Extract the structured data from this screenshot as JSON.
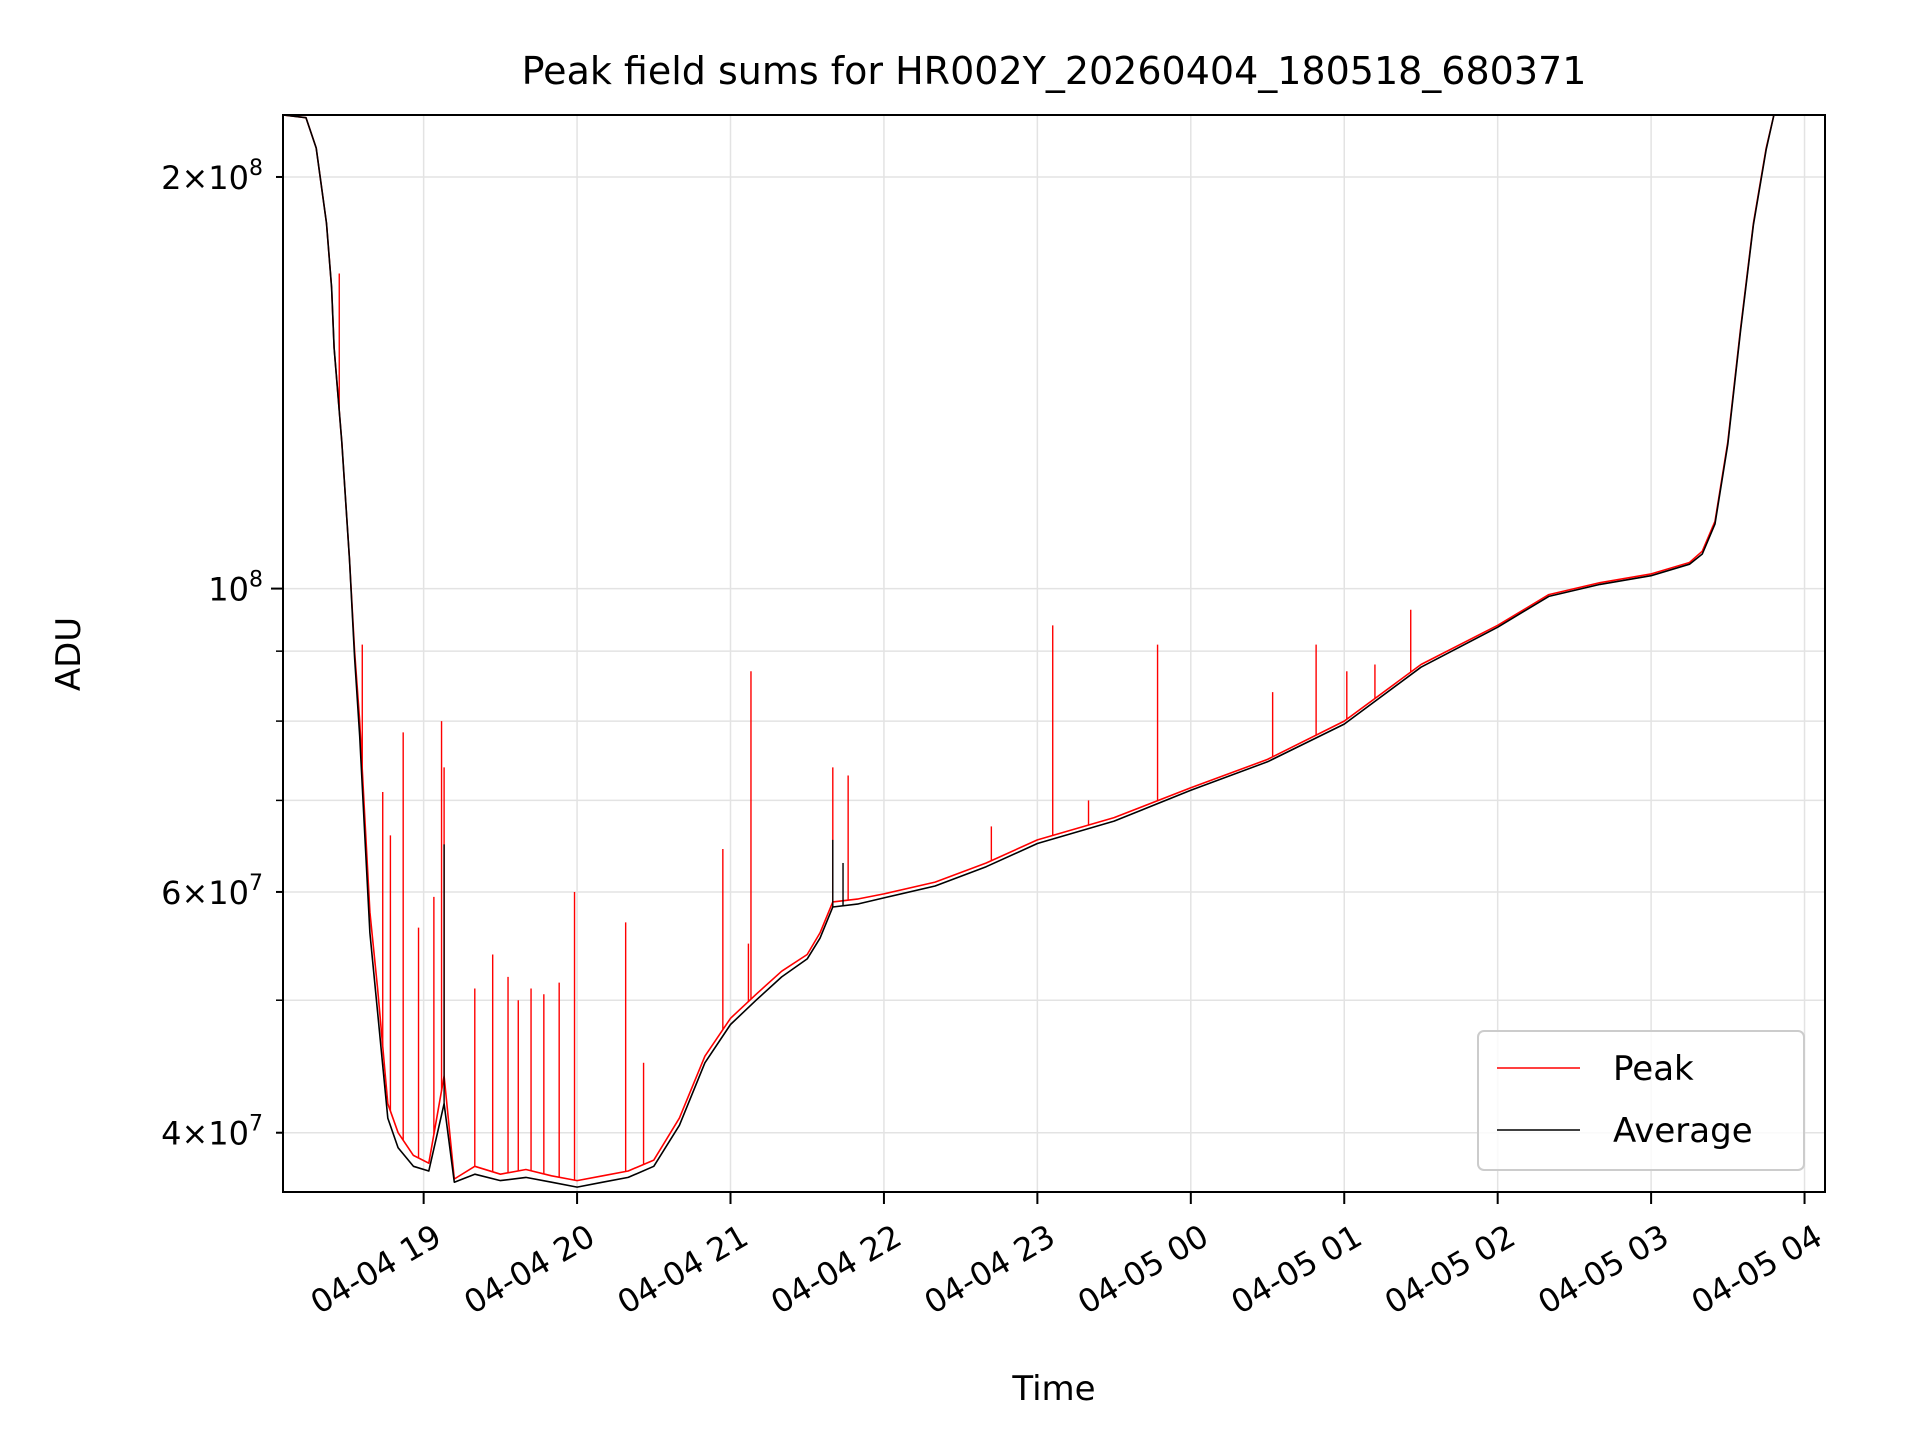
{
  "chart_data": {
    "type": "line",
    "title": "Peak field sums for HR002Y_20260404_180518_680371",
    "xlabel": "Time",
    "ylabel": "ADU",
    "yscale": "log",
    "ylim": [
      36200000,
      222000000
    ],
    "xlim": [
      "2026-04-04 18:05",
      "2026-04-05 04:08"
    ],
    "grid": true,
    "legend_position": "lower right",
    "x_ticks": [
      {
        "t": "2026-04-04 19:00",
        "label": "04-04 19"
      },
      {
        "t": "2026-04-04 20:00",
        "label": "04-04 20"
      },
      {
        "t": "2026-04-04 21:00",
        "label": "04-04 21"
      },
      {
        "t": "2026-04-04 22:00",
        "label": "04-04 22"
      },
      {
        "t": "2026-04-04 23:00",
        "label": "04-04 23"
      },
      {
        "t": "2026-04-05 00:00",
        "label": "04-05 00"
      },
      {
        "t": "2026-04-05 01:00",
        "label": "04-05 01"
      },
      {
        "t": "2026-04-05 02:00",
        "label": "04-05 02"
      },
      {
        "t": "2026-04-05 03:00",
        "label": "04-05 03"
      },
      {
        "t": "2026-04-05 04:00",
        "label": "04-05 04"
      }
    ],
    "y_ticks": [
      {
        "value": 40000000,
        "mantissa": "4",
        "exponent": "7",
        "major": false
      },
      {
        "value": 60000000,
        "mantissa": "6",
        "exponent": "7",
        "major": false
      },
      {
        "value": 100000000,
        "mantissa": "",
        "exponent": "8",
        "major": true
      },
      {
        "value": 200000000,
        "mantissa": "2",
        "exponent": "8",
        "major": false
      }
    ],
    "y_minor_gridlines": [
      50000000,
      70000000,
      80000000,
      90000000
    ],
    "series": [
      {
        "name": "Peak",
        "color": "#ff0000",
        "points": [
          [
            "2026-04-04 18:05",
            222000000
          ],
          [
            "2026-04-04 18:14",
            221000000
          ],
          [
            "2026-04-04 18:18",
            210000000
          ],
          [
            "2026-04-04 18:22",
            185000000
          ],
          [
            "2026-04-04 18:24",
            166000000
          ],
          [
            "2026-04-04 18:25",
            150000000
          ],
          [
            "2026-04-04 18:28",
            128000000
          ],
          [
            "2026-04-04 18:31",
            105000000
          ],
          [
            "2026-04-04 18:33",
            90000000
          ],
          [
            "2026-04-04 18:35",
            80000000
          ],
          [
            "2026-04-04 18:37",
            68000000
          ],
          [
            "2026-04-04 18:39",
            58000000
          ],
          [
            "2026-04-04 18:42",
            51000000
          ],
          [
            "2026-04-04 18:46",
            42000000
          ],
          [
            "2026-04-04 18:50",
            40000000
          ],
          [
            "2026-04-04 18:56",
            38500000
          ],
          [
            "2026-04-04 19:02",
            38000000
          ],
          [
            "2026-04-04 19:08",
            44000000
          ],
          [
            "2026-04-04 19:12",
            37000000
          ],
          [
            "2026-04-04 19:20",
            37800000
          ],
          [
            "2026-04-04 19:30",
            37300000
          ],
          [
            "2026-04-04 19:40",
            37600000
          ],
          [
            "2026-04-04 19:50",
            37200000
          ],
          [
            "2026-04-04 20:00",
            36900000
          ],
          [
            "2026-04-04 20:10",
            37200000
          ],
          [
            "2026-04-04 20:20",
            37500000
          ],
          [
            "2026-04-04 20:30",
            38200000
          ],
          [
            "2026-04-04 20:40",
            41000000
          ],
          [
            "2026-04-04 20:50",
            45500000
          ],
          [
            "2026-04-04 21:00",
            48500000
          ],
          [
            "2026-04-04 21:10",
            50500000
          ],
          [
            "2026-04-04 21:20",
            52500000
          ],
          [
            "2026-04-04 21:30",
            54000000
          ],
          [
            "2026-04-04 21:35",
            56000000
          ],
          [
            "2026-04-04 21:40",
            59000000
          ],
          [
            "2026-04-04 21:50",
            59300000
          ],
          [
            "2026-04-04 22:00",
            59800000
          ],
          [
            "2026-04-04 22:20",
            61000000
          ],
          [
            "2026-04-04 22:40",
            63000000
          ],
          [
            "2026-04-04 23:00",
            65500000
          ],
          [
            "2026-04-04 23:30",
            68000000
          ],
          [
            "2026-04-05 00:00",
            71500000
          ],
          [
            "2026-04-05 00:30",
            75000000
          ],
          [
            "2026-04-05 01:00",
            80000000
          ],
          [
            "2026-04-05 01:30",
            88000000
          ],
          [
            "2026-04-05 02:00",
            94000000
          ],
          [
            "2026-04-05 02:20",
            99000000
          ],
          [
            "2026-04-05 02:40",
            101000000
          ],
          [
            "2026-04-05 03:00",
            102500000
          ],
          [
            "2026-04-05 03:15",
            104500000
          ],
          [
            "2026-04-05 03:20",
            106500000
          ],
          [
            "2026-04-05 03:25",
            112000000
          ],
          [
            "2026-04-05 03:30",
            128000000
          ],
          [
            "2026-04-05 03:35",
            155000000
          ],
          [
            "2026-04-05 03:40",
            185000000
          ],
          [
            "2026-04-05 03:45",
            210000000
          ],
          [
            "2026-04-05 03:48",
            222000000
          ]
        ],
        "spikes": [
          [
            "2026-04-04 18:27",
            170000000
          ],
          [
            "2026-04-04 18:36",
            91000000
          ],
          [
            "2026-04-04 18:44",
            71000000
          ],
          [
            "2026-04-04 18:47",
            66000000
          ],
          [
            "2026-04-04 18:52",
            78500000
          ],
          [
            "2026-04-04 18:58",
            56500000
          ],
          [
            "2026-04-04 19:04",
            59500000
          ],
          [
            "2026-04-04 19:07",
            80000000
          ],
          [
            "2026-04-04 19:08",
            74000000
          ],
          [
            "2026-04-04 19:20",
            51000000
          ],
          [
            "2026-04-04 19:27",
            54000000
          ],
          [
            "2026-04-04 19:33",
            52000000
          ],
          [
            "2026-04-04 19:37",
            50000000
          ],
          [
            "2026-04-04 19:42",
            51000000
          ],
          [
            "2026-04-04 19:47",
            50500000
          ],
          [
            "2026-04-04 19:53",
            51500000
          ],
          [
            "2026-04-04 19:59",
            60000000
          ],
          [
            "2026-04-04 20:19",
            57000000
          ],
          [
            "2026-04-04 20:26",
            45000000
          ],
          [
            "2026-04-04 20:57",
            64500000
          ],
          [
            "2026-04-04 21:07",
            55000000
          ],
          [
            "2026-04-04 21:08",
            87000000
          ],
          [
            "2026-04-04 21:40",
            74000000
          ],
          [
            "2026-04-04 21:46",
            73000000
          ],
          [
            "2026-04-04 22:42",
            67000000
          ],
          [
            "2026-04-04 23:06",
            94000000
          ],
          [
            "2026-04-04 23:20",
            70000000
          ],
          [
            "2026-04-04 23:47",
            91000000
          ],
          [
            "2026-04-05 00:32",
            84000000
          ],
          [
            "2026-04-05 00:49",
            91000000
          ],
          [
            "2026-04-05 01:01",
            87000000
          ],
          [
            "2026-04-05 01:12",
            88000000
          ],
          [
            "2026-04-05 01:26",
            96500000
          ],
          [
            "2026-04-05 03:24",
            111000000
          ]
        ]
      },
      {
        "name": "Average",
        "color": "#000000",
        "points": [
          [
            "2026-04-04 18:05",
            222000000
          ],
          [
            "2026-04-04 18:14",
            221000000
          ],
          [
            "2026-04-04 18:18",
            210000000
          ],
          [
            "2026-04-04 18:22",
            185000000
          ],
          [
            "2026-04-04 18:24",
            166000000
          ],
          [
            "2026-04-04 18:25",
            150000000
          ],
          [
            "2026-04-04 18:28",
            128000000
          ],
          [
            "2026-04-04 18:31",
            105000000
          ],
          [
            "2026-04-04 18:33",
            89000000
          ],
          [
            "2026-04-04 18:35",
            78000000
          ],
          [
            "2026-04-04 18:37",
            66000000
          ],
          [
            "2026-04-04 18:39",
            56000000
          ],
          [
            "2026-04-04 18:42",
            49000000
          ],
          [
            "2026-04-04 18:46",
            41000000
          ],
          [
            "2026-04-04 18:50",
            39000000
          ],
          [
            "2026-04-04 18:56",
            37800000
          ],
          [
            "2026-04-04 19:02",
            37500000
          ],
          [
            "2026-04-04 19:08",
            42000000
          ],
          [
            "2026-04-04 19:12",
            36800000
          ],
          [
            "2026-04-04 19:20",
            37300000
          ],
          [
            "2026-04-04 19:30",
            36900000
          ],
          [
            "2026-04-04 19:40",
            37100000
          ],
          [
            "2026-04-04 19:50",
            36800000
          ],
          [
            "2026-04-04 20:00",
            36500000
          ],
          [
            "2026-04-04 20:10",
            36800000
          ],
          [
            "2026-04-04 20:20",
            37100000
          ],
          [
            "2026-04-04 20:30",
            37800000
          ],
          [
            "2026-04-04 20:40",
            40500000
          ],
          [
            "2026-04-04 20:50",
            45000000
          ],
          [
            "2026-04-04 21:00",
            48000000
          ],
          [
            "2026-04-04 21:10",
            50000000
          ],
          [
            "2026-04-04 21:20",
            52000000
          ],
          [
            "2026-04-04 21:30",
            53600000
          ],
          [
            "2026-04-04 21:35",
            55500000
          ],
          [
            "2026-04-04 21:40",
            58500000
          ],
          [
            "2026-04-04 21:50",
            58800000
          ],
          [
            "2026-04-04 22:00",
            59400000
          ],
          [
            "2026-04-04 22:20",
            60600000
          ],
          [
            "2026-04-04 22:40",
            62600000
          ],
          [
            "2026-04-04 23:00",
            65100000
          ],
          [
            "2026-04-04 23:30",
            67600000
          ],
          [
            "2026-04-05 00:00",
            71200000
          ],
          [
            "2026-04-05 00:30",
            74700000
          ],
          [
            "2026-04-05 01:00",
            79600000
          ],
          [
            "2026-04-05 01:30",
            87600000
          ],
          [
            "2026-04-05 02:00",
            93700000
          ],
          [
            "2026-04-05 02:20",
            98700000
          ],
          [
            "2026-04-05 02:40",
            100700000
          ],
          [
            "2026-04-05 03:00",
            102200000
          ],
          [
            "2026-04-05 03:15",
            104200000
          ],
          [
            "2026-04-05 03:20",
            106000000
          ],
          [
            "2026-04-05 03:25",
            111500000
          ],
          [
            "2026-04-05 03:30",
            127500000
          ],
          [
            "2026-04-05 03:35",
            154500000
          ],
          [
            "2026-04-05 03:40",
            184500000
          ],
          [
            "2026-04-05 03:45",
            209500000
          ],
          [
            "2026-04-05 03:48",
            222000000
          ]
        ],
        "spikes": [
          [
            "2026-04-04 19:08",
            65000000
          ],
          [
            "2026-04-04 21:44",
            63000000
          ],
          [
            "2026-04-04 21:40",
            65500000
          ]
        ]
      }
    ]
  }
}
